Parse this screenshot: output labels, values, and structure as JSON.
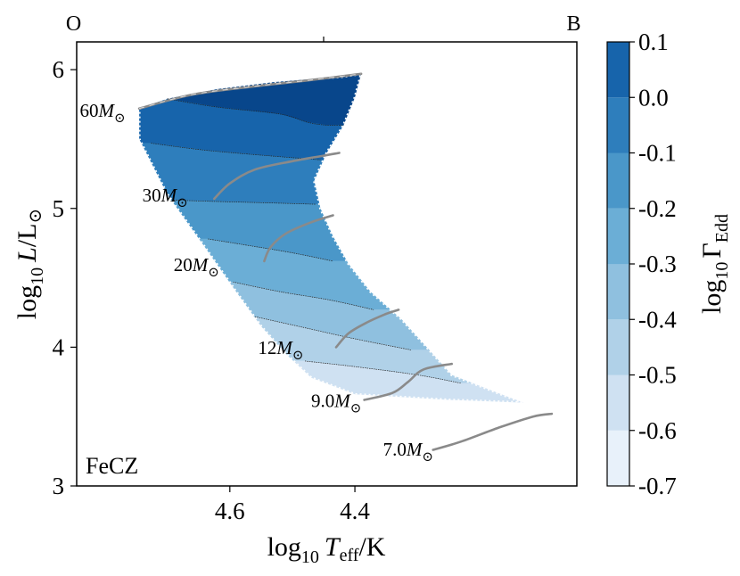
{
  "chart_data": {
    "type": "contour",
    "panel_label": "FeCZ",
    "xlabel_base": "log",
    "xlabel_sub": "10",
    "xlabel_var": "T",
    "xlabel_var_sub": "eff",
    "xlabel_unit": "/K",
    "ylabel_base": "log",
    "ylabel_sub": "10",
    "ylabel_var": "L",
    "ylabel_unit": "/L",
    "ylabel_sun": "⊙",
    "xlim": [
      4.845,
      4.045
    ],
    "ylim": [
      3.0,
      6.2
    ],
    "xticks": [
      4.6,
      4.4
    ],
    "xtick_labels": [
      "4.6",
      "4.4"
    ],
    "yticks": [
      3,
      4,
      5,
      6
    ],
    "ytick_labels": [
      "3",
      "4",
      "5",
      "6"
    ],
    "top_labels": [
      {
        "text": "O",
        "x": 4.85
      },
      {
        "text": "B",
        "x": 4.05
      }
    ],
    "top_tick_x": 4.45,
    "colorbar": {
      "label_base": "log",
      "label_sub": "10",
      "label_var": "Γ",
      "label_var_sub": "Edd",
      "levels": [
        -0.7,
        -0.6,
        -0.5,
        -0.4,
        -0.3,
        -0.2,
        -0.1,
        0.0,
        0.1
      ],
      "tick_labels": [
        "-0.7",
        "-0.6",
        "-0.5",
        "-0.4",
        "-0.3",
        "-0.2",
        "-0.1",
        "0.0",
        "0.1"
      ],
      "colors": [
        "#e8f1fa",
        "#cfe1f2",
        "#b0d1e8",
        "#8fc0df",
        "#6baed6",
        "#4a97c9",
        "#2e7ebc",
        "#1764ab",
        "#08468b"
      ]
    },
    "region_outline": [
      [
        4.745,
        5.72
      ],
      [
        4.7,
        5.79
      ],
      [
        4.62,
        5.86
      ],
      [
        4.53,
        5.91
      ],
      [
        4.42,
        5.95
      ],
      [
        4.39,
        5.97
      ],
      [
        4.4,
        5.8
      ],
      [
        4.418,
        5.6
      ],
      [
        4.445,
        5.4
      ],
      [
        4.465,
        5.2
      ],
      [
        4.455,
        5.0
      ],
      [
        4.435,
        4.8
      ],
      [
        4.41,
        4.6
      ],
      [
        4.375,
        4.4
      ],
      [
        4.325,
        4.2
      ],
      [
        4.285,
        4.0
      ],
      [
        4.245,
        3.8
      ],
      [
        4.16,
        3.65
      ],
      [
        4.13,
        3.6
      ],
      [
        4.25,
        3.62
      ],
      [
        4.4,
        3.66
      ],
      [
        4.47,
        3.78
      ],
      [
        4.51,
        3.95
      ],
      [
        4.55,
        4.15
      ],
      [
        4.59,
        4.4
      ],
      [
        4.64,
        4.72
      ],
      [
        4.7,
        5.1
      ],
      [
        4.745,
        5.5
      ]
    ],
    "contour_lines": [
      {
        "level": 0.0,
        "points": [
          [
            4.7,
            5.79
          ],
          [
            4.62,
            5.73
          ],
          [
            4.52,
            5.68
          ],
          [
            4.475,
            5.62
          ],
          [
            4.445,
            5.6
          ],
          [
            4.418,
            5.6
          ]
        ]
      },
      {
        "level": -0.1,
        "points": [
          [
            4.726,
            5.47
          ],
          [
            4.64,
            5.42
          ],
          [
            4.54,
            5.38
          ],
          [
            4.455,
            5.35
          ]
        ]
      },
      {
        "level": -0.2,
        "points": [
          [
            4.69,
            5.06
          ],
          [
            4.62,
            5.05
          ],
          [
            4.54,
            5.04
          ],
          [
            4.462,
            5.03
          ]
        ]
      },
      {
        "level": -0.3,
        "points": [
          [
            4.635,
            4.78
          ],
          [
            4.58,
            4.74
          ],
          [
            4.5,
            4.68
          ],
          [
            4.435,
            4.62
          ]
        ]
      },
      {
        "level": -0.4,
        "points": [
          [
            4.595,
            4.47
          ],
          [
            4.52,
            4.4
          ],
          [
            4.44,
            4.34
          ],
          [
            4.37,
            4.27
          ]
        ]
      },
      {
        "level": -0.5,
        "points": [
          [
            4.56,
            4.22
          ],
          [
            4.48,
            4.14
          ],
          [
            4.4,
            4.06
          ],
          [
            4.31,
            3.98
          ]
        ]
      },
      {
        "level": -0.6,
        "points": [
          [
            4.48,
            3.9
          ],
          [
            4.4,
            3.86
          ],
          [
            4.3,
            3.8
          ],
          [
            4.23,
            3.74
          ]
        ]
      }
    ],
    "region_fill_bands": [
      {
        "level": 0.1,
        "from_y": 5.6,
        "to_y": 6.0
      },
      {
        "level": 0.0,
        "from_y": 5.35,
        "to_y": 5.6
      },
      {
        "level": -0.1,
        "from_y": 5.03,
        "to_y": 5.35
      },
      {
        "level": -0.2,
        "from_y": 4.62,
        "to_y": 5.03
      },
      {
        "level": -0.3,
        "from_y": 4.27,
        "to_y": 4.62
      },
      {
        "level": -0.4,
        "from_y": 3.98,
        "to_y": 4.27
      },
      {
        "level": -0.5,
        "from_y": 3.74,
        "to_y": 3.98
      },
      {
        "level": -0.6,
        "from_y": 3.55,
        "to_y": 3.74
      }
    ],
    "tracks": [
      {
        "mass_label": "60M",
        "label_x": 4.84,
        "label_y": 5.66,
        "points": [
          [
            4.745,
            5.72
          ],
          [
            4.66,
            5.82
          ],
          [
            4.56,
            5.88
          ],
          [
            4.48,
            5.92
          ],
          [
            4.39,
            5.97
          ]
        ]
      },
      {
        "mass_label": "30M",
        "label_x": 4.74,
        "label_y": 5.05,
        "points": [
          [
            4.625,
            5.07
          ],
          [
            4.6,
            5.18
          ],
          [
            4.56,
            5.28
          ],
          [
            4.5,
            5.34
          ],
          [
            4.45,
            5.38
          ],
          [
            4.425,
            5.4
          ]
        ]
      },
      {
        "mass_label": "20M",
        "label_x": 4.69,
        "label_y": 4.55,
        "points": [
          [
            4.545,
            4.62
          ],
          [
            4.535,
            4.72
          ],
          [
            4.51,
            4.82
          ],
          [
            4.47,
            4.9
          ],
          [
            4.435,
            4.95
          ]
        ]
      },
      {
        "mass_label": "12M",
        "label_x": 4.555,
        "label_y": 3.95,
        "points": [
          [
            4.43,
            4.0
          ],
          [
            4.41,
            4.1
          ],
          [
            4.38,
            4.18
          ],
          [
            4.35,
            4.24
          ],
          [
            4.33,
            4.27
          ]
        ]
      },
      {
        "mass_label": "9.0M",
        "label_x": 4.47,
        "label_y": 3.57,
        "points": [
          [
            4.385,
            3.62
          ],
          [
            4.34,
            3.67
          ],
          [
            4.315,
            3.75
          ],
          [
            4.29,
            3.84
          ],
          [
            4.245,
            3.88
          ]
        ]
      },
      {
        "mass_label": "7.0M",
        "label_x": 4.355,
        "label_y": 3.22,
        "points": [
          [
            4.275,
            3.26
          ],
          [
            4.23,
            3.32
          ],
          [
            4.17,
            3.42
          ],
          [
            4.115,
            3.5
          ],
          [
            4.085,
            3.52
          ]
        ]
      }
    ],
    "sun_symbol": "⊙"
  }
}
